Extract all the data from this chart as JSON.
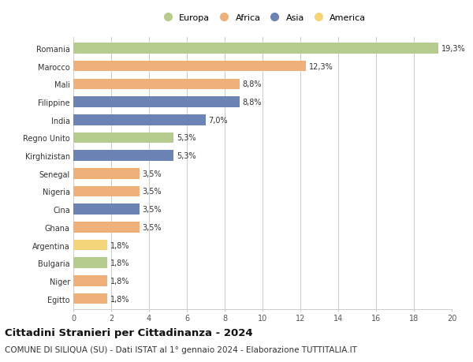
{
  "categories": [
    "Romania",
    "Marocco",
    "Mali",
    "Filippine",
    "India",
    "Regno Unito",
    "Kirghizistan",
    "Senegal",
    "Nigeria",
    "Cina",
    "Ghana",
    "Argentina",
    "Bulgaria",
    "Niger",
    "Egitto"
  ],
  "values": [
    19.3,
    12.3,
    8.8,
    8.8,
    7.0,
    5.3,
    5.3,
    3.5,
    3.5,
    3.5,
    3.5,
    1.8,
    1.8,
    1.8,
    1.8
  ],
  "labels": [
    "19,3%",
    "12,3%",
    "8,8%",
    "8,8%",
    "7,0%",
    "5,3%",
    "5,3%",
    "3,5%",
    "3,5%",
    "3,5%",
    "3,5%",
    "1,8%",
    "1,8%",
    "1,8%",
    "1,8%"
  ],
  "continents": [
    "Europa",
    "Africa",
    "Africa",
    "Asia",
    "Asia",
    "Europa",
    "Asia",
    "Africa",
    "Africa",
    "Asia",
    "Africa",
    "America",
    "Europa",
    "Africa",
    "Africa"
  ],
  "continent_colors": {
    "Europa": "#b5cc8e",
    "Africa": "#f0b07a",
    "Asia": "#6b83b5",
    "America": "#f5d57a"
  },
  "legend_order": [
    "Europa",
    "Africa",
    "Asia",
    "America"
  ],
  "title": "Cittadini Stranieri per Cittadinanza - 2024",
  "subtitle": "COMUNE DI SILIQUA (SU) - Dati ISTAT al 1° gennaio 2024 - Elaborazione TUTTITALIA.IT",
  "xlim": [
    0,
    20
  ],
  "xticks": [
    0,
    2,
    4,
    6,
    8,
    10,
    12,
    14,
    16,
    18,
    20
  ],
  "background_color": "#ffffff",
  "grid_color": "#cccccc",
  "bar_height": 0.6,
  "title_fontsize": 9.5,
  "subtitle_fontsize": 7.5,
  "label_fontsize": 7,
  "tick_fontsize": 7,
  "legend_fontsize": 8,
  "ytick_fontsize": 7
}
